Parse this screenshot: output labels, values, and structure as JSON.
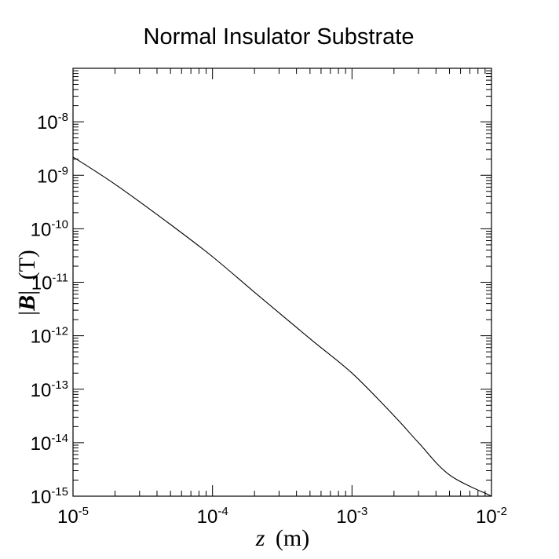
{
  "chart_data": {
    "type": "line",
    "title": "Normal Insulator Substrate",
    "xlabel": {
      "var": "z",
      "unit": "(m)"
    },
    "ylabel": {
      "var": "B",
      "unit": "(T)"
    },
    "xscale": "log",
    "yscale": "log",
    "xlim": [
      1e-05,
      0.01
    ],
    "ylim": [
      1e-15,
      1e-07
    ],
    "grid": false,
    "legend": "none",
    "x_ticks": [
      {
        "base": "10",
        "exp": "-5"
      },
      {
        "base": "10",
        "exp": "-4"
      },
      {
        "base": "10",
        "exp": "-3"
      },
      {
        "base": "10",
        "exp": "-2"
      }
    ],
    "y_ticks": [
      {
        "base": "10",
        "exp": "-8"
      },
      {
        "base": "10",
        "exp": "-9"
      },
      {
        "base": "10",
        "exp": "-10"
      },
      {
        "base": "10",
        "exp": "-11"
      },
      {
        "base": "10",
        "exp": "-12"
      },
      {
        "base": "10",
        "exp": "-13"
      },
      {
        "base": "10",
        "exp": "-14"
      },
      {
        "base": "10",
        "exp": "-15"
      }
    ],
    "series": [
      {
        "color": "#000000",
        "x": [
          1e-05,
          2e-05,
          5e-05,
          0.0001,
          0.0002,
          0.0005,
          0.001,
          0.002,
          0.003,
          0.005,
          0.01
        ],
        "y": [
          2.2e-09,
          6.8e-10,
          1.2e-10,
          3e-11,
          6.5e-12,
          8.8e-13,
          2e-13,
          3.2e-14,
          1e-14,
          2.5e-15,
          1e-15
        ]
      }
    ]
  }
}
